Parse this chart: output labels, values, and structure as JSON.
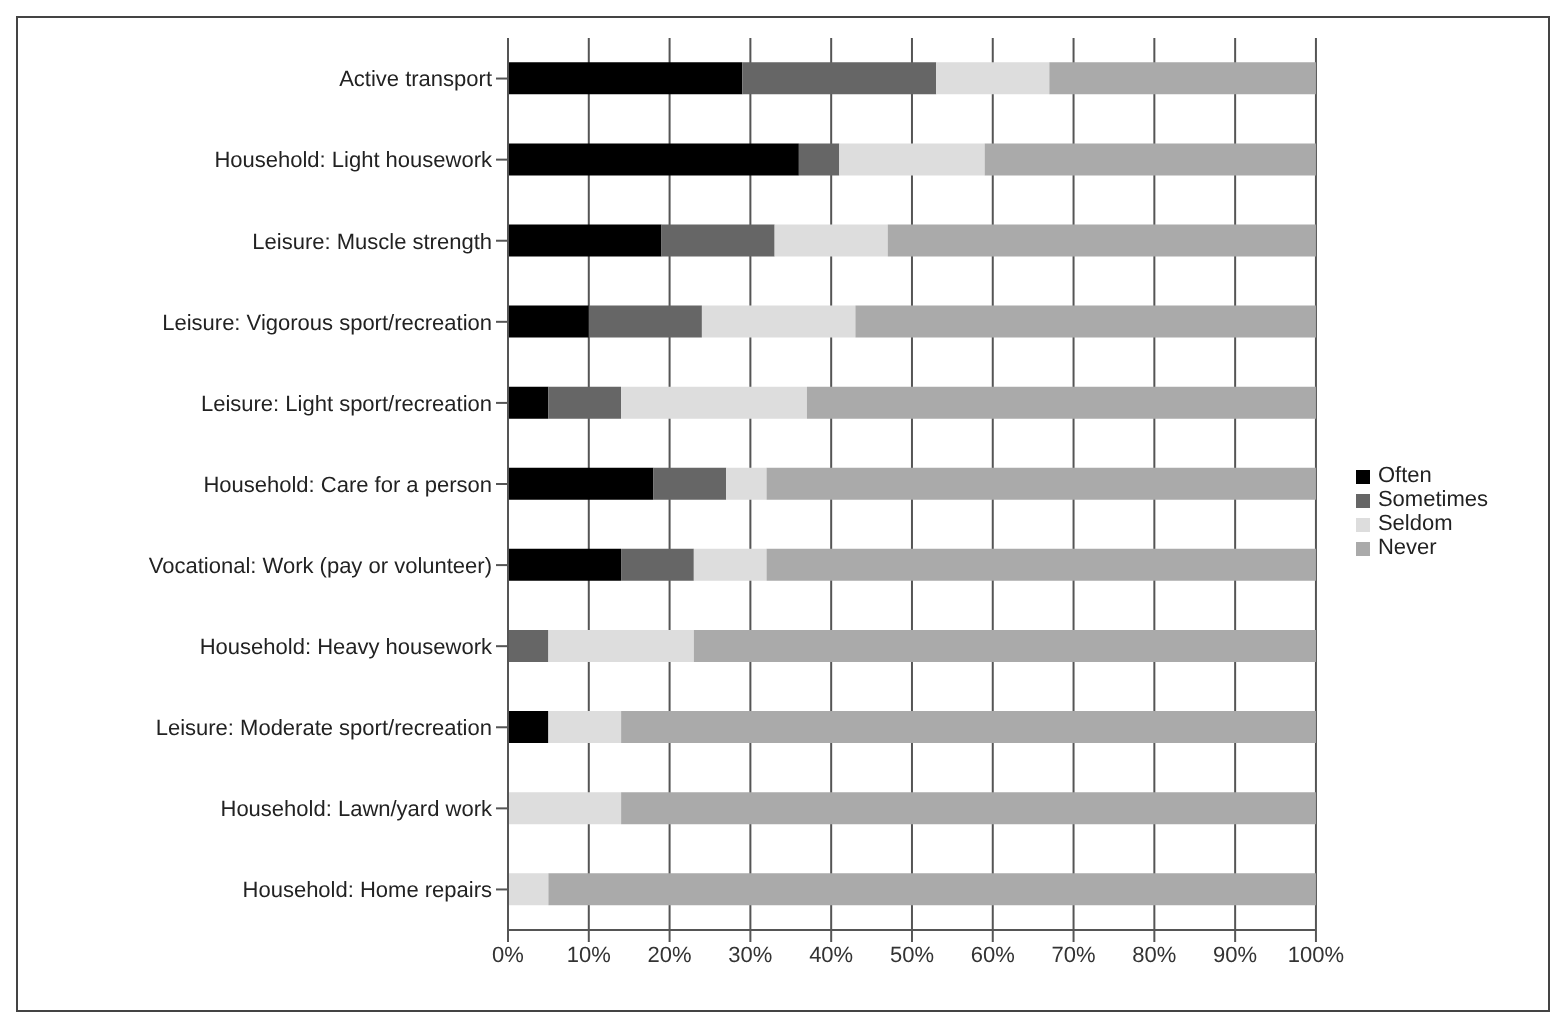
{
  "chart_data": {
    "type": "bar",
    "orientation": "horizontal",
    "stacked": true,
    "categories": [
      "Active transport",
      "Household: Light housework",
      "Leisure: Muscle strength",
      "Leisure: Vigorous sport/recreation",
      "Leisure: Light sport/recreation",
      "Household: Care for a person",
      "Vocational: Work (pay or volunteer)",
      "Household: Heavy housework",
      "Leisure: Moderate sport/recreation",
      "Household: Lawn/yard work",
      "Household: Home repairs"
    ],
    "series": [
      {
        "name": "Often",
        "color": "#000000",
        "values": [
          29,
          36,
          19,
          10,
          5,
          18,
          14,
          0,
          5,
          0,
          0
        ]
      },
      {
        "name": "Sometimes",
        "color": "#666666",
        "values": [
          24,
          5,
          14,
          14,
          9,
          9,
          9,
          5,
          0,
          0,
          0
        ]
      },
      {
        "name": "Seldom",
        "color": "#dddddd",
        "values": [
          14,
          18,
          14,
          19,
          23,
          5,
          9,
          18,
          9,
          14,
          5
        ]
      },
      {
        "name": "Never",
        "color": "#aaaaaa",
        "values": [
          33,
          41,
          53,
          57,
          63,
          68,
          68,
          77,
          86,
          86,
          95
        ]
      }
    ],
    "xlim": [
      0,
      100
    ],
    "xticks": [
      {
        "value": 0,
        "label": "0%"
      },
      {
        "value": 10,
        "label": "10%"
      },
      {
        "value": 20,
        "label": "20%"
      },
      {
        "value": 30,
        "label": "30%"
      },
      {
        "value": 40,
        "label": "40%"
      },
      {
        "value": 50,
        "label": "50%"
      },
      {
        "value": 60,
        "label": "60%"
      },
      {
        "value": 70,
        "label": "70%"
      },
      {
        "value": 80,
        "label": "80%"
      },
      {
        "value": 90,
        "label": "90%"
      },
      {
        "value": 100,
        "label": "100%"
      }
    ],
    "grid": "x",
    "legend": "right"
  }
}
